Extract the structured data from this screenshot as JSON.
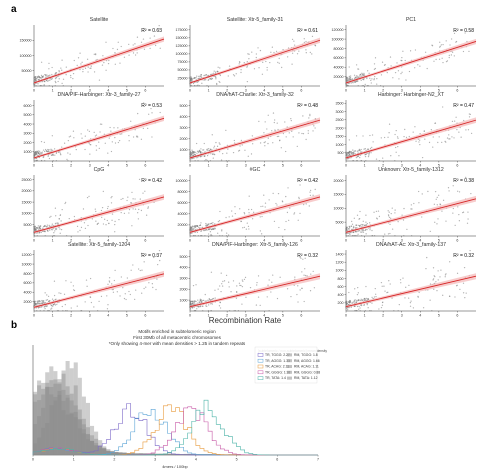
{
  "figure": {
    "panel_a_label": "a",
    "panel_b_label": "b"
  },
  "colors": {
    "scatter_point": "#7f7f7f",
    "regression_line": "#d62728",
    "confidence_band": "#f4b6b6",
    "axis": "#333333",
    "legend_tl": [
      "#7b68c8",
      "#5ba4d6",
      "#e89a3c",
      "#c85aa8",
      "#4bb3a8"
    ]
  },
  "chart_data": [
    {
      "type": "scatter",
      "panel": "a",
      "xlabel": "Recombination Rate",
      "x_ticks": [
        "0",
        "1",
        "2",
        "3",
        "4",
        "5",
        "6"
      ],
      "xlim": [
        0,
        7
      ],
      "subplots": [
        {
          "title": "Satellite",
          "r2_label": "R² = 0.63",
          "r2": 0.63,
          "y_ticks": [
            "50000",
            "100000",
            "150000"
          ],
          "ylim": [
            0,
            200000
          ],
          "slope": 0.72,
          "intercept": 0.05
        },
        {
          "title": "Satellite: Xtr-5_family-31",
          "r2_label": "R² = 0.61",
          "r2": 0.61,
          "y_ticks": [
            "25000",
            "50000",
            "75000",
            "100000",
            "125000",
            "150000",
            "175000"
          ],
          "ylim": [
            0,
            190000
          ],
          "slope": 0.7,
          "intercept": 0.05
        },
        {
          "title": "PC1",
          "r2_label": "R² = 0.58",
          "r2": 0.58,
          "y_ticks": [
            "20000",
            "40000",
            "60000",
            "80000",
            "100000",
            "120000"
          ],
          "ylim": [
            0,
            130000
          ],
          "slope": 0.68,
          "intercept": 0.05
        },
        {
          "title": "DNA/PIF-Harbinger: Xtr-3_family-27",
          "r2_label": "R² = 0.53",
          "r2": 0.53,
          "y_ticks": [
            "1000",
            "2000",
            "3000",
            "4000",
            "5000",
            "6000"
          ],
          "ylim": [
            0,
            6600
          ],
          "slope": 0.65,
          "intercept": 0.05
        },
        {
          "title": "DNA/hAT-Charlie: Xtr-3_family-32",
          "r2_label": "R² = 0.48",
          "r2": 0.48,
          "y_ticks": [
            "1000",
            "2000",
            "3000",
            "4000",
            "5000"
          ],
          "ylim": [
            0,
            5500
          ],
          "slope": 0.62,
          "intercept": 0.05
        },
        {
          "title": "Harbinger: Harbinger-N2_XT",
          "r2_label": "R² = 0.47",
          "r2": 0.47,
          "y_ticks": [
            "500",
            "1000",
            "1500",
            "2000",
            "2500",
            "3000",
            "3500"
          ],
          "ylim": [
            0,
            3700
          ],
          "slope": 0.62,
          "intercept": 0.05
        },
        {
          "title": "CpG",
          "r2_label": "R² = 0.42",
          "r2": 0.42,
          "y_ticks": [
            "5000",
            "10000",
            "15000",
            "20000",
            "25000"
          ],
          "ylim": [
            0,
            27000
          ],
          "slope": 0.58,
          "intercept": 0.06
        },
        {
          "title": "#GC",
          "r2_label": "R² = 0.42",
          "r2": 0.42,
          "y_ticks": [
            "20000",
            "40000",
            "60000",
            "80000",
            "100000"
          ],
          "ylim": [
            0,
            110000
          ],
          "slope": 0.58,
          "intercept": 0.06
        },
        {
          "title": "Unknown: Xtr-5_family-1312",
          "r2_label": "R² = 0.38",
          "r2": 0.38,
          "y_ticks": [
            "5000",
            "10000",
            "15000",
            "20000"
          ],
          "ylim": [
            0,
            22000
          ],
          "slope": 0.55,
          "intercept": 0.06
        },
        {
          "title": "Satellite: Xtr-5_family-1204",
          "r2_label": "R² = 0.37",
          "r2": 0.37,
          "y_ticks": [
            "2000",
            "4000",
            "6000",
            "8000",
            "10000",
            "12000"
          ],
          "ylim": [
            0,
            13000
          ],
          "slope": 0.55,
          "intercept": 0.06
        },
        {
          "title": "DNA/PIF-Harbinger: Xtr-5_family-126",
          "r2_label": "R² = 0.32",
          "r2": 0.32,
          "y_ticks": [
            "1000",
            "2000",
            "3000",
            "4000",
            "5000"
          ],
          "ylim": [
            0,
            5600
          ],
          "slope": 0.5,
          "intercept": 0.07
        },
        {
          "title": "DNA/hAT-Ac: Xtr-3_family-137",
          "r2_label": "R² = 0.32",
          "r2": 0.32,
          "y_ticks": [
            "200",
            "400",
            "600",
            "800",
            "1000",
            "1200",
            "1400"
          ],
          "ylim": [
            0,
            1500
          ],
          "slope": 0.5,
          "intercept": 0.07
        }
      ]
    },
    {
      "type": "histogram",
      "panel": "b",
      "title_lines": [
        "Motifs enriched in subtelomeric region",
        "First 30Mb of all metacentric chromosomes",
        "*Only showing 4-mer with mean densities > 1.25 in tandem repeats"
      ],
      "xlabel": "4mers / 100bp",
      "x_ticks": [
        "0",
        "1",
        "2",
        "3",
        "4",
        "5",
        "6",
        "7"
      ],
      "xlim": [
        0,
        7
      ],
      "legend_header": "[subtelomeric / non-subtelomeric] mean density",
      "series": [
        {
          "name": "TR, TGGG: 2.27",
          "group": "TR",
          "peak_x": 2.4
        },
        {
          "name": "TR, AGGG: 1.33",
          "group": "TR",
          "peak_x": 2.9
        },
        {
          "name": "TR, ACAG: 2.11",
          "group": "TR",
          "peak_x": 3.4
        },
        {
          "name": "TR, GGGG: 1.92",
          "group": "TR",
          "peak_x": 3.9
        },
        {
          "name": "TR, TATA: 1.4",
          "group": "TR",
          "peak_x": 4.3
        },
        {
          "name": "RM, TGGG: 1.8",
          "group": "RM",
          "peak_x": 0.9
        },
        {
          "name": "RM, AGGG: 1.66",
          "group": "RM",
          "peak_x": 0.7
        },
        {
          "name": "RM, ACAG: 1.11",
          "group": "RM",
          "peak_x": 0.5
        },
        {
          "name": "RM, GGGG: 0.88",
          "group": "RM",
          "peak_x": 0.4
        },
        {
          "name": "RM, TATA: 1.12",
          "group": "RM",
          "peak_x": 0.3
        }
      ]
    }
  ]
}
